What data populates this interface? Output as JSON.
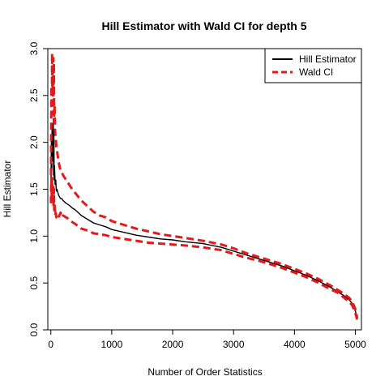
{
  "chart_data": {
    "type": "line",
    "title": "Hill Estimator with Wald CI for depth 5",
    "xlabel": "Number of Order Statistics",
    "ylabel": "Hill Estimator",
    "xlim": [
      -50,
      5100
    ],
    "ylim": [
      0,
      3.0
    ],
    "xticks": [
      0,
      1000,
      2000,
      3000,
      4000,
      5000
    ],
    "yticks": [
      0.0,
      0.5,
      1.0,
      1.5,
      2.0,
      2.5,
      3.0
    ],
    "xtick_labels": [
      "0",
      "1000",
      "2000",
      "3000",
      "4000",
      "5000"
    ],
    "ytick_labels": [
      "0.0",
      "0.5",
      "1.0",
      "1.5",
      "2.0",
      "2.5",
      "3.0"
    ],
    "grid": false,
    "legend": {
      "position": "top-right"
    },
    "series": [
      {
        "name": "Hill Estimator",
        "color": "#000000",
        "style": "solid",
        "x": [
          2,
          6,
          10,
          15,
          20,
          25,
          30,
          35,
          40,
          45,
          50,
          55,
          60,
          70,
          80,
          90,
          100,
          120,
          140,
          160,
          180,
          200,
          250,
          300,
          350,
          400,
          500,
          600,
          700,
          800,
          900,
          1000,
          1200,
          1400,
          1600,
          1800,
          2000,
          2200,
          2500,
          2800,
          3000,
          3200,
          3400,
          3600,
          3800,
          4000,
          4200,
          4400,
          4600,
          4700,
          4800,
          4900,
          4950,
          5000,
          5030
        ],
        "y": [
          1.5,
          1.85,
          2.05,
          1.7,
          2.2,
          1.9,
          2.0,
          1.8,
          2.25,
          1.65,
          2.1,
          1.6,
          1.75,
          1.55,
          1.6,
          1.48,
          1.5,
          1.45,
          1.42,
          1.4,
          1.4,
          1.38,
          1.35,
          1.33,
          1.3,
          1.28,
          1.22,
          1.18,
          1.14,
          1.12,
          1.1,
          1.07,
          1.04,
          1.01,
          0.99,
          0.97,
          0.96,
          0.94,
          0.92,
          0.88,
          0.84,
          0.8,
          0.76,
          0.72,
          0.68,
          0.63,
          0.58,
          0.52,
          0.45,
          0.41,
          0.37,
          0.32,
          0.28,
          0.2,
          0.12
        ]
      },
      {
        "name": "Wald CI",
        "color": "#e31a1c",
        "style": "dashed",
        "x": [
          2,
          6,
          10,
          15,
          20,
          25,
          30,
          35,
          40,
          45,
          50,
          55,
          60,
          70,
          80,
          90,
          100,
          120,
          140,
          160,
          180,
          200,
          250,
          300,
          350,
          400,
          500,
          600,
          700,
          800,
          900,
          1000,
          1200,
          1400,
          1600,
          1800,
          2000,
          2200,
          2500,
          2800,
          3000,
          3200,
          3400,
          3600,
          3800,
          4000,
          4200,
          4400,
          4600,
          4700,
          4800,
          4900,
          4950,
          5000,
          5030
        ],
        "y": [
          1.65,
          2.1,
          2.6,
          2.3,
          2.95,
          2.6,
          2.7,
          2.5,
          2.9,
          2.3,
          2.85,
          2.2,
          2.4,
          2.1,
          2.05,
          1.95,
          1.92,
          1.82,
          1.75,
          1.7,
          1.68,
          1.65,
          1.6,
          1.55,
          1.5,
          1.46,
          1.38,
          1.32,
          1.26,
          1.22,
          1.2,
          1.16,
          1.12,
          1.08,
          1.05,
          1.02,
          1.0,
          0.98,
          0.95,
          0.91,
          0.87,
          0.82,
          0.78,
          0.74,
          0.7,
          0.65,
          0.6,
          0.54,
          0.47,
          0.43,
          0.39,
          0.34,
          0.3,
          0.22,
          0.13
        ]
      },
      {
        "name": "Wald CI",
        "color": "#e31a1c",
        "style": "dashed",
        "x": [
          2,
          6,
          10,
          15,
          20,
          25,
          30,
          35,
          40,
          45,
          50,
          55,
          60,
          70,
          80,
          90,
          100,
          120,
          140,
          160,
          180,
          200,
          250,
          300,
          350,
          400,
          500,
          600,
          700,
          800,
          900,
          1000,
          1200,
          1400,
          1600,
          1800,
          2000,
          2200,
          2500,
          2800,
          3000,
          3200,
          3400,
          3600,
          3800,
          4000,
          4200,
          4400,
          4600,
          4700,
          4800,
          4900,
          4950,
          5000,
          5030
        ],
        "y": [
          1.35,
          1.55,
          1.6,
          1.4,
          1.62,
          1.45,
          1.5,
          1.38,
          1.55,
          1.3,
          1.5,
          1.28,
          1.35,
          1.22,
          1.25,
          1.2,
          1.22,
          1.2,
          1.22,
          1.25,
          1.2,
          1.22,
          1.2,
          1.18,
          1.15,
          1.13,
          1.08,
          1.06,
          1.03,
          1.02,
          1.01,
          0.99,
          0.97,
          0.95,
          0.93,
          0.92,
          0.91,
          0.9,
          0.88,
          0.85,
          0.81,
          0.77,
          0.74,
          0.7,
          0.66,
          0.61,
          0.56,
          0.5,
          0.43,
          0.4,
          0.35,
          0.3,
          0.26,
          0.18,
          0.11
        ]
      }
    ],
    "legend_entries": [
      {
        "label": "Hill Estimator",
        "color": "#000000",
        "style": "solid"
      },
      {
        "label": "Wald CI",
        "color": "#e31a1c",
        "style": "dashed"
      }
    ]
  }
}
